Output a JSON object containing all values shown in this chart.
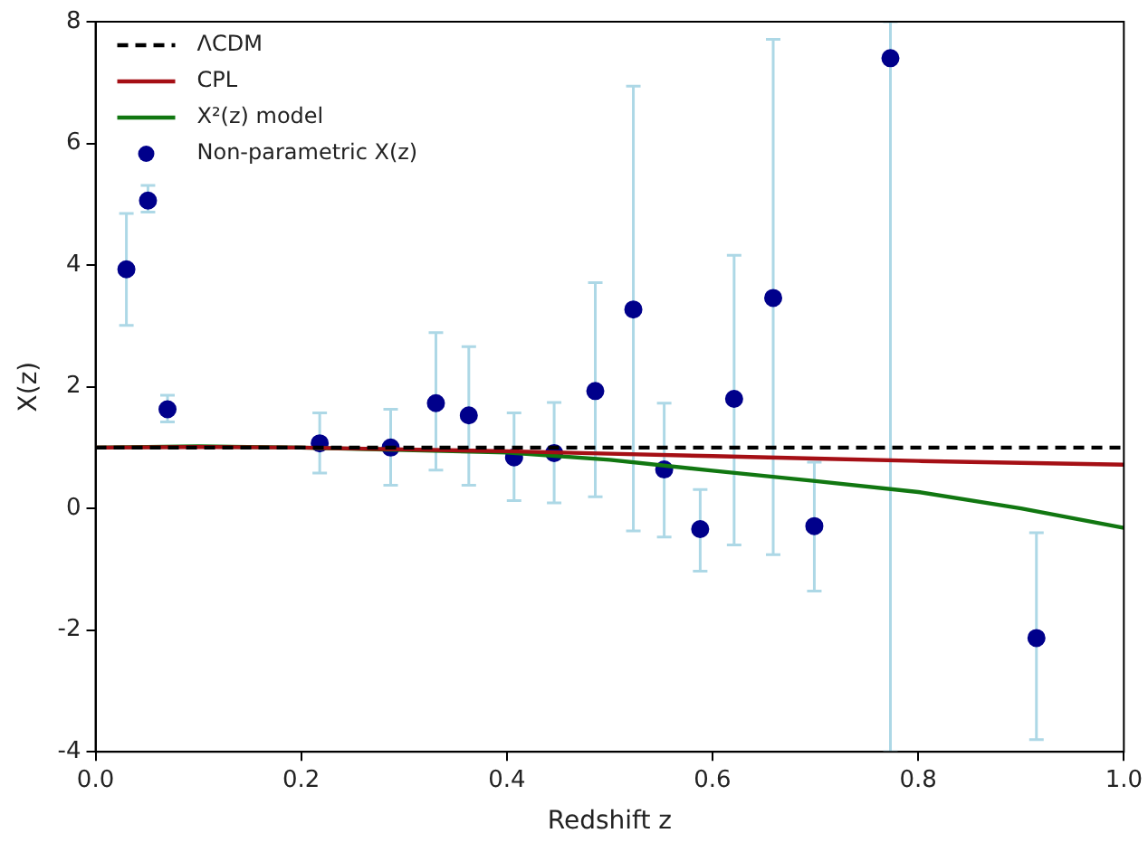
{
  "chart_data": {
    "type": "scatter",
    "xlabel": "Redshift z",
    "ylabel": "X(z)",
    "xlim": [
      0,
      1
    ],
    "xticks": [
      {
        "value": 0,
        "label": "0.0"
      },
      {
        "value": 0.2,
        "label": "0.2"
      },
      {
        "value": 0.4,
        "label": "0.4"
      },
      {
        "value": 0.6,
        "label": "0.6"
      },
      {
        "value": 0.8,
        "label": "0.8"
      },
      {
        "value": 1,
        "label": "1.0"
      }
    ],
    "ylim": [
      -4,
      8
    ],
    "yticks": [
      -4,
      -2,
      0,
      2,
      4,
      6,
      8
    ],
    "grid": false,
    "legend": "top left",
    "series": [
      {
        "name": "ΛCDM",
        "type": "line",
        "color": "#000000",
        "line_style": "dashed",
        "marker": "none",
        "x": [
          0,
          1
        ],
        "values": [
          1,
          1
        ]
      },
      {
        "name": "CPL",
        "type": "line",
        "color": "#a50f15",
        "line_style": "solid",
        "marker": "none",
        "x": [
          0,
          0.1,
          0.2,
          0.3,
          0.4,
          0.5,
          0.6,
          0.7,
          0.8,
          0.9,
          1
        ],
        "values": [
          1,
          1.01,
          1,
          0.97,
          0.94,
          0.9,
          0.86,
          0.82,
          0.78,
          0.75,
          0.72
        ]
      },
      {
        "name": "X²(z) model",
        "type": "line",
        "color": "#117711",
        "line_style": "solid",
        "marker": "none",
        "x": [
          0,
          0.1,
          0.2,
          0.3,
          0.4,
          0.5,
          0.6,
          0.7,
          0.8,
          0.9,
          1
        ],
        "values": [
          1,
          1.02,
          1,
          0.96,
          0.92,
          0.8,
          0.62,
          0.45,
          0.27,
          0,
          -0.32
        ]
      },
      {
        "name": "Non-parametric X(z)",
        "color": "#00008b",
        "marker": "circle",
        "x": [
          0.03,
          0.051,
          0.07,
          0.218,
          0.287,
          0.331,
          0.363,
          0.407,
          0.446,
          0.486,
          0.523,
          0.553,
          0.588,
          0.621,
          0.659,
          0.699,
          0.773,
          0.915
        ],
        "values": [
          3.93,
          5.06,
          1.63,
          1.07,
          1,
          1.73,
          1.53,
          0.84,
          0.91,
          1.93,
          3.27,
          0.64,
          -0.34,
          1.8,
          3.46,
          -0.29,
          7.4,
          -2.13
        ],
        "errors": [
          [
            3.01,
            4.85
          ],
          [
            4.87,
            5.31
          ],
          [
            1.42,
            1.86
          ],
          [
            0.58,
            1.57
          ],
          [
            0.38,
            1.63
          ],
          [
            0.63,
            2.89
          ],
          [
            0.38,
            2.66
          ],
          [
            0.13,
            1.57
          ],
          [
            0.09,
            1.74
          ],
          [
            0.19,
            3.71
          ],
          [
            -0.37,
            6.94
          ],
          [
            -0.47,
            1.73
          ],
          [
            -1.03,
            0.31
          ],
          [
            -0.6,
            4.16
          ],
          [
            -0.76,
            7.71
          ],
          [
            -1.36,
            0.76
          ],
          [
            -4,
            8
          ],
          [
            -3.8,
            -0.4
          ]
        ]
      }
    ]
  }
}
